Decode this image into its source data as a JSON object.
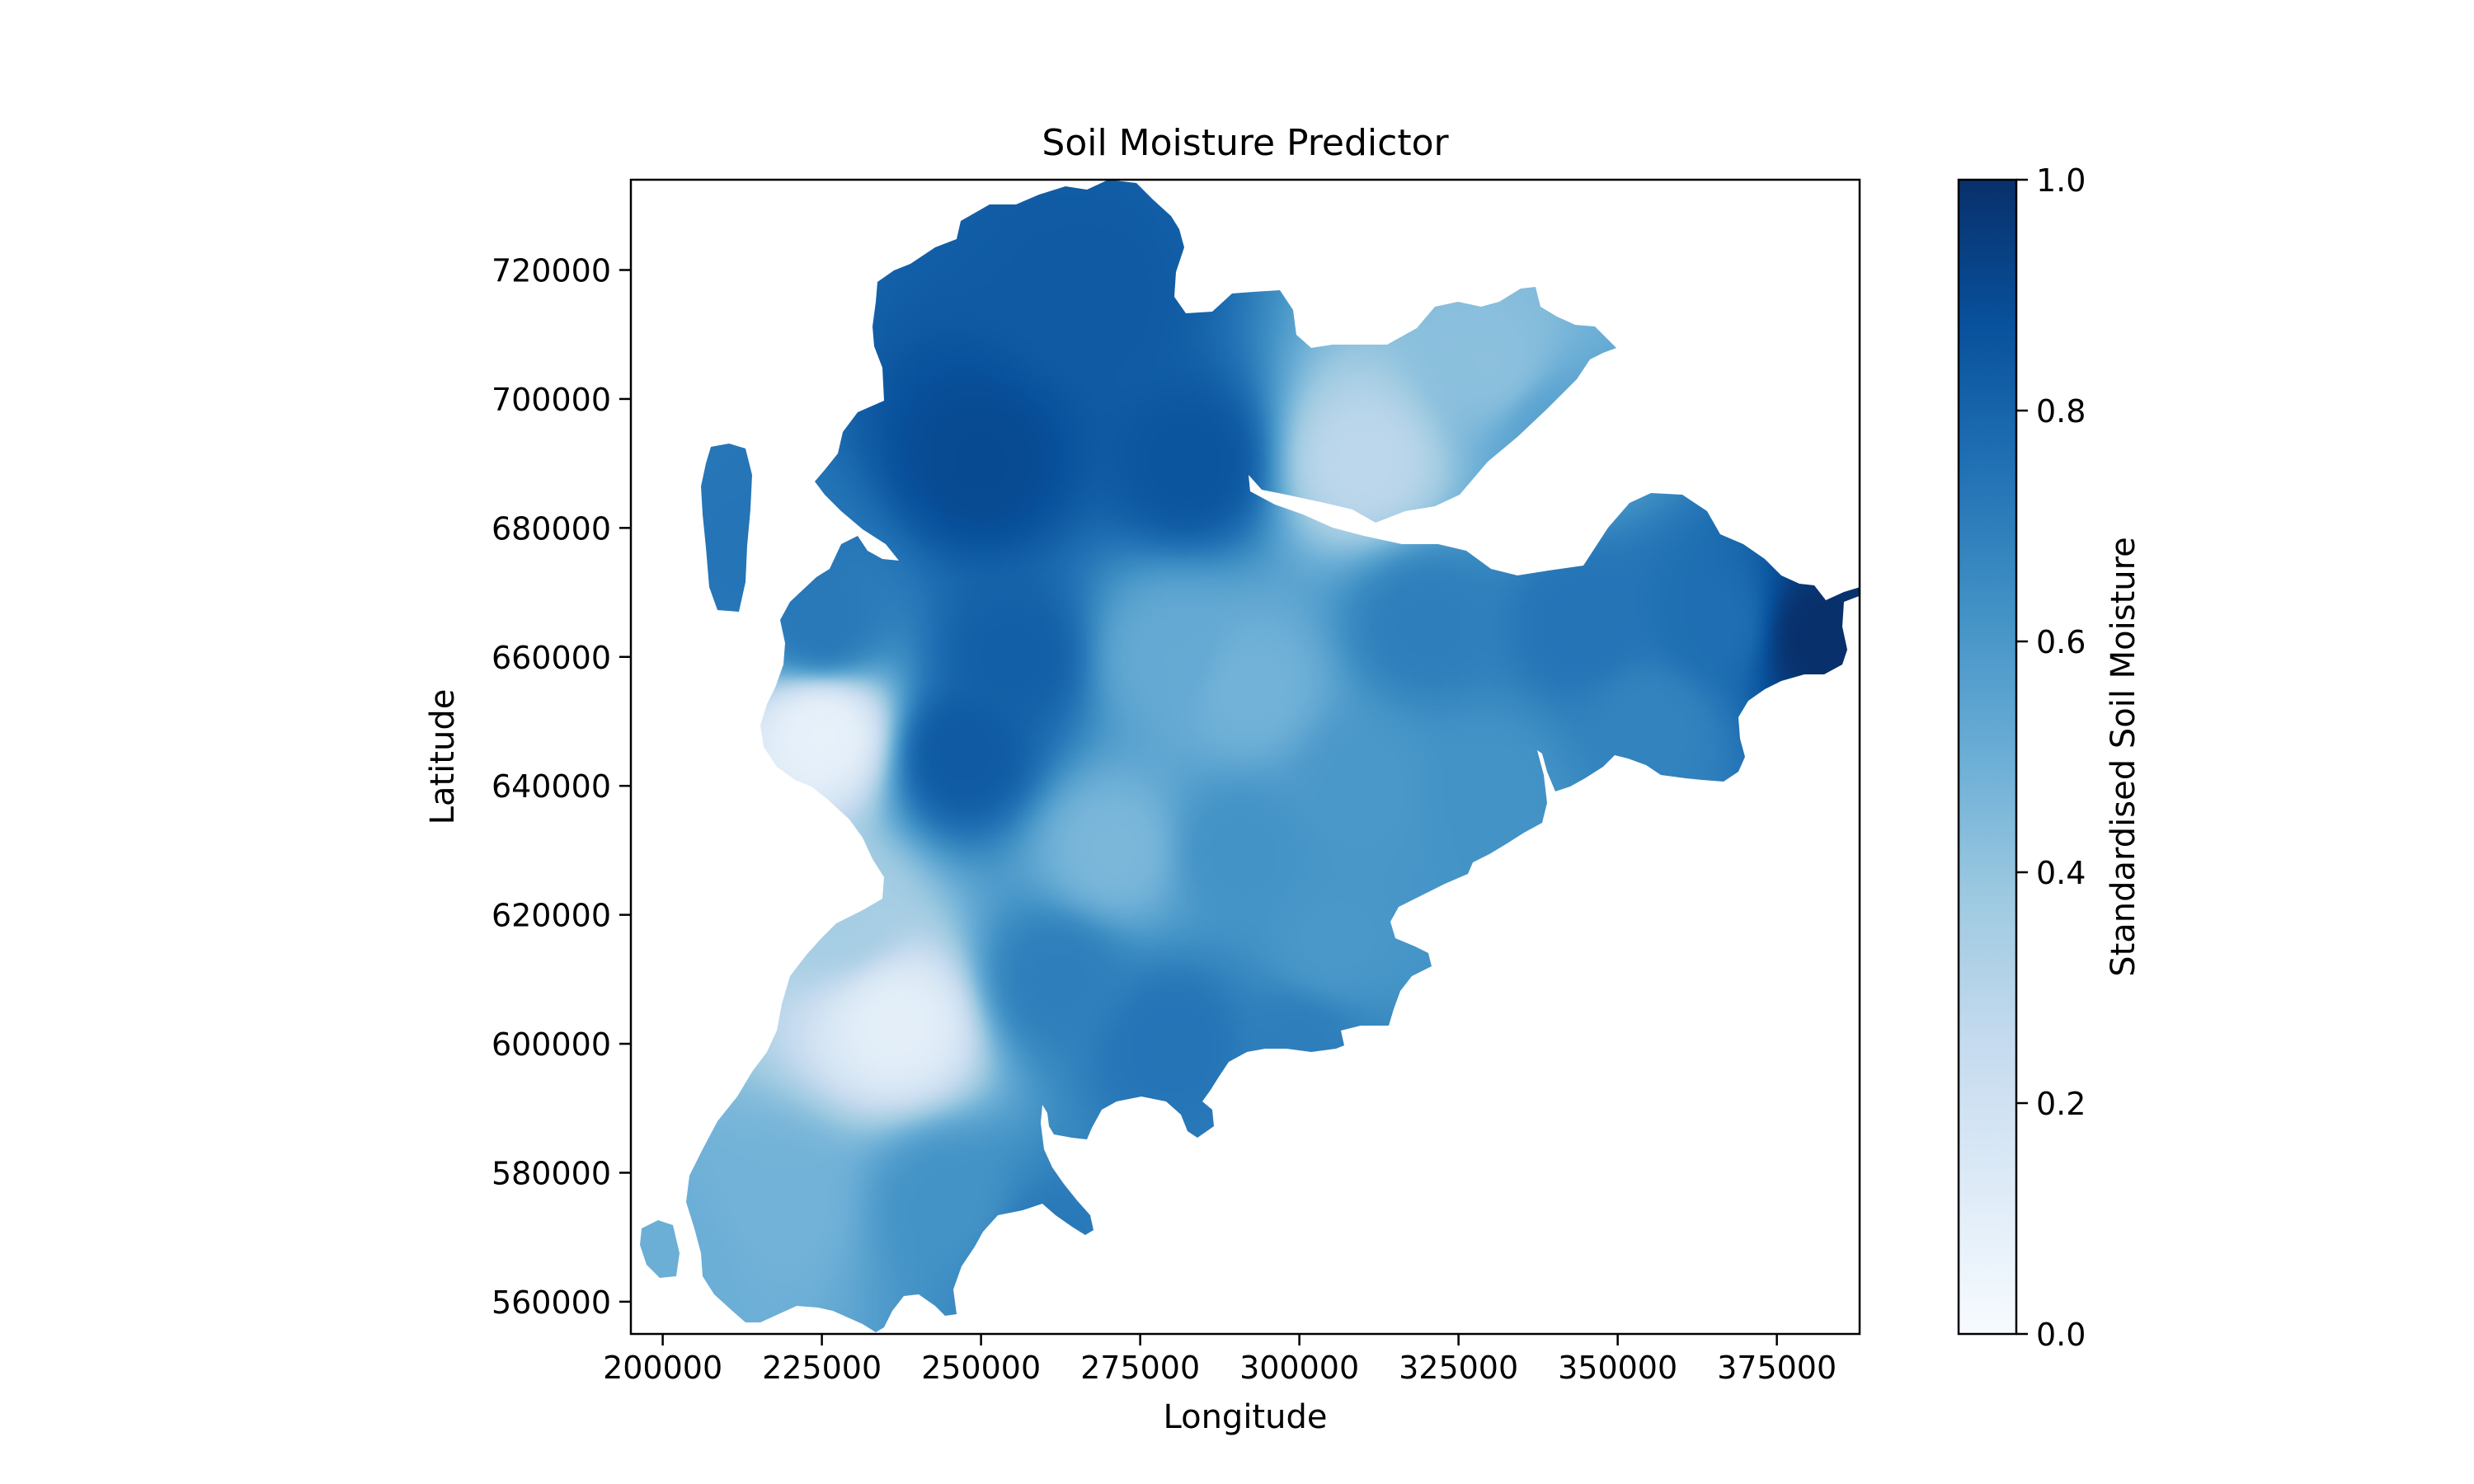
{
  "chart_data": {
    "type": "heatmap",
    "title": "Soil Moisture Predictor",
    "xlabel": "Longitude",
    "ylabel": "Latitude",
    "xlim": [
      195000,
      388000
    ],
    "ylim": [
      555000,
      734000
    ],
    "x_ticks": [
      200000,
      225000,
      250000,
      275000,
      300000,
      325000,
      350000,
      375000
    ],
    "y_ticks": [
      560000,
      580000,
      600000,
      620000,
      640000,
      660000,
      680000,
      700000,
      720000
    ],
    "grid": false,
    "colormap": "Blues",
    "colorbar": {
      "label": "Standardised Soil Moisture",
      "range": [
        0.0,
        1.0
      ],
      "ticks": [
        "0.0",
        "0.2",
        "0.4",
        "0.6",
        "0.8",
        "1.0"
      ],
      "colors": [
        "#f7fbff",
        "#deebf7",
        "#c6dbef",
        "#9ecae1",
        "#6baed6",
        "#4292c6",
        "#2171b5",
        "#08519c",
        "#08306b"
      ]
    },
    "moisture_samples": [
      {
        "x": 225000,
        "y": 648000,
        "value": 0.08
      },
      {
        "x": 228000,
        "y": 620000,
        "value": 0.35
      },
      {
        "x": 237000,
        "y": 603000,
        "value": 0.1
      },
      {
        "x": 218000,
        "y": 575000,
        "value": 0.48
      },
      {
        "x": 202000,
        "y": 567000,
        "value": 0.5
      },
      {
        "x": 245000,
        "y": 575000,
        "value": 0.62
      },
      {
        "x": 260000,
        "y": 568000,
        "value": 0.72
      },
      {
        "x": 250000,
        "y": 690000,
        "value": 0.9
      },
      {
        "x": 267000,
        "y": 715000,
        "value": 0.84
      },
      {
        "x": 283000,
        "y": 690000,
        "value": 0.86
      },
      {
        "x": 255000,
        "y": 660000,
        "value": 0.82
      },
      {
        "x": 247000,
        "y": 645000,
        "value": 0.84
      },
      {
        "x": 215000,
        "y": 675000,
        "value": 0.74
      },
      {
        "x": 225000,
        "y": 665000,
        "value": 0.72
      },
      {
        "x": 310000,
        "y": 690000,
        "value": 0.28
      },
      {
        "x": 330000,
        "y": 705000,
        "value": 0.42
      },
      {
        "x": 340000,
        "y": 695000,
        "value": 0.55
      },
      {
        "x": 280000,
        "y": 660000,
        "value": 0.52
      },
      {
        "x": 292000,
        "y": 655000,
        "value": 0.48
      },
      {
        "x": 271000,
        "y": 630000,
        "value": 0.46
      },
      {
        "x": 290000,
        "y": 630000,
        "value": 0.62
      },
      {
        "x": 310000,
        "y": 640000,
        "value": 0.6
      },
      {
        "x": 330000,
        "y": 640000,
        "value": 0.62
      },
      {
        "x": 305000,
        "y": 615000,
        "value": 0.6
      },
      {
        "x": 262000,
        "y": 610000,
        "value": 0.7
      },
      {
        "x": 280000,
        "y": 600000,
        "value": 0.74
      },
      {
        "x": 300000,
        "y": 600000,
        "value": 0.7
      },
      {
        "x": 320000,
        "y": 665000,
        "value": 0.7
      },
      {
        "x": 345000,
        "y": 665000,
        "value": 0.74
      },
      {
        "x": 355000,
        "y": 650000,
        "value": 0.68
      },
      {
        "x": 365000,
        "y": 665000,
        "value": 0.76
      },
      {
        "x": 382000,
        "y": 663000,
        "value": 1.0
      }
    ]
  }
}
